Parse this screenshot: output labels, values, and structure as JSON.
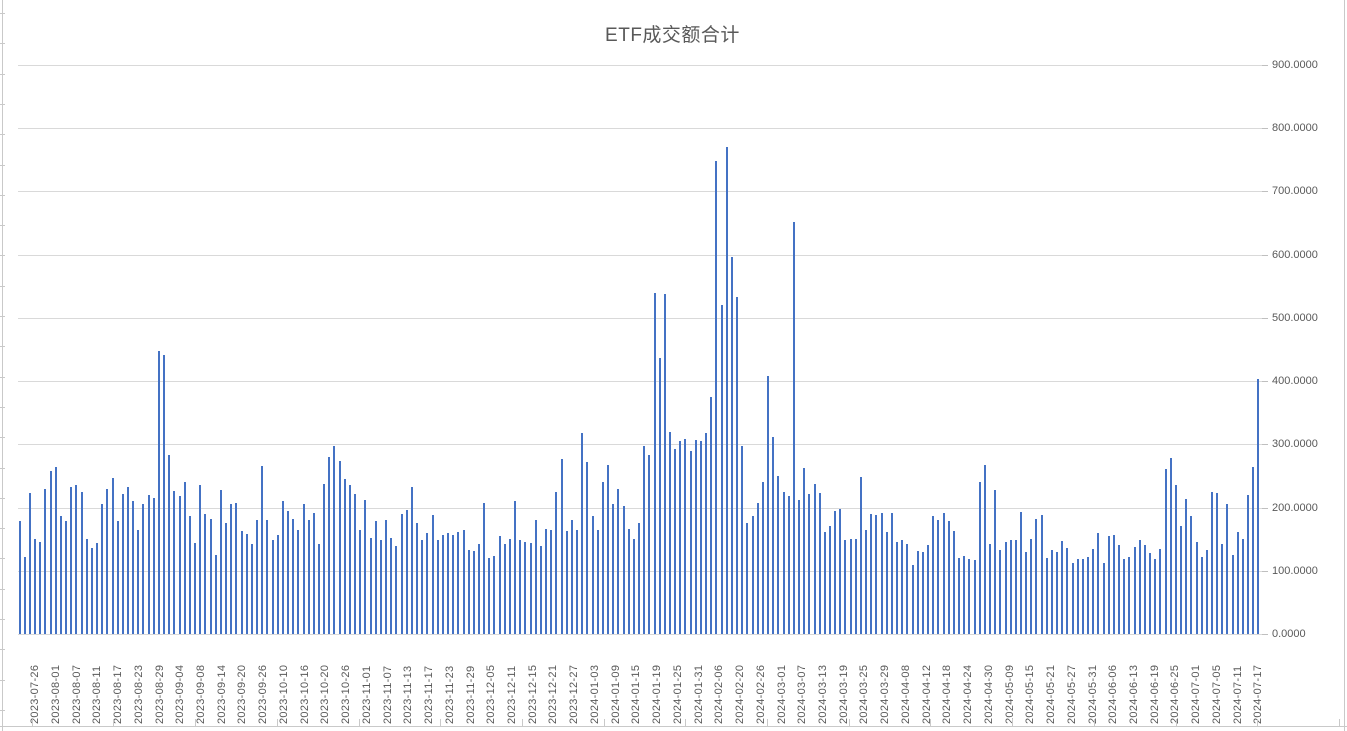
{
  "chart": {
    "title": "ETF成交额合计"
  },
  "chart_data": {
    "type": "bar",
    "title": "ETF成交额合计",
    "xlabel": "",
    "ylabel": "",
    "grid": true,
    "legend_position": "none",
    "y_axis_side": "right",
    "ylim": [
      0,
      900
    ],
    "y_tick_step": 100,
    "y_tick_labels": [
      "0.0000",
      "100.0000",
      "200.0000",
      "300.0000",
      "400.0000",
      "500.0000",
      "600.0000",
      "700.0000",
      "800.0000",
      "900.0000"
    ],
    "x_label_interval": 4,
    "x_tick_labels": [
      "2023-07-26",
      "2023-08-01",
      "2023-08-07",
      "2023-08-11",
      "2023-08-17",
      "2023-08-23",
      "2023-08-29",
      "2023-09-04",
      "2023-09-08",
      "2023-09-14",
      "2023-09-20",
      "2023-09-26",
      "2023-10-10",
      "2023-10-16",
      "2023-10-20",
      "2023-10-26",
      "2023-11-01",
      "2023-11-07",
      "2023-11-13",
      "2023-11-17",
      "2023-11-23",
      "2023-11-29",
      "2023-12-05",
      "2023-12-11",
      "2023-12-15",
      "2023-12-21",
      "2023-12-27",
      "2024-01-03",
      "2024-01-09",
      "2024-01-15",
      "2024-01-19",
      "2024-01-25",
      "2024-01-31",
      "2024-02-06",
      "2024-02-20",
      "2024-02-26",
      "2024-03-01",
      "2024-03-07",
      "2024-03-13",
      "2024-03-19",
      "2024-03-25",
      "2024-03-29",
      "2024-04-08",
      "2024-04-12",
      "2024-04-18",
      "2024-04-24",
      "2024-04-30",
      "2024-05-09",
      "2024-05-15",
      "2024-05-21",
      "2024-05-27",
      "2024-05-31",
      "2024-06-06",
      "2024-06-13",
      "2024-06-19",
      "2024-06-25",
      "2024-07-01",
      "2024-07-05",
      "2024-07-11",
      "2024-07-17"
    ],
    "values": [
      178,
      122,
      223,
      151,
      146,
      230,
      258,
      264,
      186,
      178,
      232,
      236,
      224,
      150,
      136,
      144,
      206,
      230,
      246,
      178,
      222,
      232,
      210,
      164,
      206,
      220,
      215,
      447,
      441,
      283,
      226,
      218,
      240,
      186,
      144,
      236,
      190,
      182,
      125,
      228,
      176,
      205,
      207,
      163,
      158,
      143,
      181,
      265,
      180,
      148,
      156,
      210,
      195,
      182,
      165,
      206,
      180,
      192,
      142,
      238,
      280,
      298,
      273,
      245,
      235,
      222,
      165,
      212,
      152,
      178,
      148,
      180,
      152,
      139,
      190,
      196,
      232,
      175,
      148,
      160,
      188,
      148,
      156,
      159,
      156,
      161,
      165,
      133,
      131,
      143,
      208,
      120,
      123,
      155,
      143,
      150,
      210,
      149,
      146,
      144,
      180,
      139,
      166,
      164,
      224,
      277,
      163,
      181,
      165,
      318,
      272,
      186,
      165,
      240,
      268,
      206,
      229,
      203,
      166,
      150,
      176,
      297,
      283,
      540,
      437,
      538,
      319,
      292,
      305,
      308,
      290,
      307,
      305,
      318,
      375,
      748,
      520,
      771,
      597,
      533,
      298,
      176,
      186,
      207,
      240,
      408,
      312,
      250,
      225,
      218,
      651,
      212,
      262,
      222,
      238,
      223,
      161,
      171,
      195,
      198,
      148,
      150,
      150,
      248,
      165,
      190,
      189,
      192,
      162,
      191,
      146,
      148,
      143,
      109,
      131,
      129,
      141,
      186,
      181,
      192,
      178,
      163,
      120,
      123,
      119,
      117,
      240,
      268,
      142,
      228,
      133,
      146,
      148,
      149,
      193,
      130,
      150,
      182,
      189,
      121,
      133,
      130,
      147,
      136,
      112,
      118,
      118,
      122,
      135,
      160,
      112,
      155,
      156,
      140,
      119,
      122,
      138,
      148,
      140,
      128,
      118,
      135,
      261,
      278,
      236,
      171,
      213,
      187,
      145,
      122,
      133,
      224,
      223,
      143,
      205,
      125,
      162,
      150,
      220,
      264,
      403
    ],
    "bar_color": "#4472C4",
    "gridline_color": "#D9D9D9",
    "text_color": "#595959"
  }
}
